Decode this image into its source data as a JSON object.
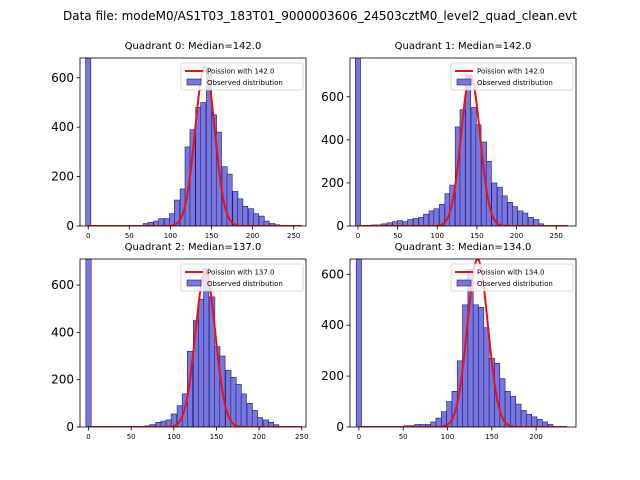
{
  "figure_title": "Data file: modeM0/AS1T03_183T01_9000003606_24503cztM0_level2_quad_clean.evt",
  "colors": {
    "hist_fill": "#7777dd",
    "hist_edge": "#1a1a80",
    "poisson_line": "#ee1111",
    "axes": "#000000"
  },
  "chart_data": [
    {
      "type": "bar",
      "title": "Quadrant 0: Median=142.0",
      "legend": [
        "Poission with 142.0",
        "Observed distribution"
      ],
      "legend_position": "top-right",
      "xlim": [
        -10,
        265
      ],
      "ylim": [
        0,
        680
      ],
      "xticks": [
        0,
        50,
        100,
        150,
        200,
        250
      ],
      "yticks": [
        0,
        200,
        400,
        600
      ],
      "bin_width": 6.4,
      "spike": {
        "x": 0,
        "value": 680
      },
      "bins": [
        [
          70,
          10
        ],
        [
          76,
          15
        ],
        [
          83,
          20
        ],
        [
          89,
          30
        ],
        [
          96,
          30
        ],
        [
          102,
          50
        ],
        [
          108,
          105
        ],
        [
          115,
          150
        ],
        [
          121,
          320
        ],
        [
          127,
          390
        ],
        [
          134,
          480
        ],
        [
          140,
          500
        ],
        [
          147,
          640
        ],
        [
          153,
          450
        ],
        [
          159,
          380
        ],
        [
          166,
          240
        ],
        [
          172,
          210
        ],
        [
          179,
          140
        ],
        [
          185,
          110
        ],
        [
          191,
          80
        ],
        [
          198,
          70
        ],
        [
          204,
          50
        ],
        [
          211,
          40
        ],
        [
          217,
          20
        ],
        [
          224,
          10
        ],
        [
          230,
          5
        ]
      ],
      "poisson_mean": 142.0,
      "poisson_peak": 645,
      "poisson_sigma": 11.9,
      "poisson_range": [
        0,
        260
      ]
    },
    {
      "type": "bar",
      "title": "Quadrant 1: Median=142.0",
      "legend": [
        "Poission with 142.0",
        "Observed distribution"
      ],
      "legend_position": "top-right",
      "xlim": [
        -10,
        275
      ],
      "ylim": [
        0,
        780
      ],
      "xticks": [
        0,
        50,
        100,
        150,
        200,
        250
      ],
      "yticks": [
        0,
        200,
        400,
        600
      ],
      "bin_width": 6.6,
      "spike": {
        "x": 0,
        "value": 780
      },
      "bins": [
        [
          20,
          5
        ],
        [
          27,
          5
        ],
        [
          33,
          10
        ],
        [
          40,
          15
        ],
        [
          47,
          20
        ],
        [
          53,
          25
        ],
        [
          60,
          20
        ],
        [
          66,
          30
        ],
        [
          73,
          35
        ],
        [
          80,
          40
        ],
        [
          86,
          55
        ],
        [
          93,
          70
        ],
        [
          99,
          80
        ],
        [
          106,
          100
        ],
        [
          113,
          150
        ],
        [
          119,
          190
        ],
        [
          126,
          460
        ],
        [
          132,
          540
        ],
        [
          139,
          700
        ],
        [
          146,
          550
        ],
        [
          152,
          470
        ],
        [
          159,
          390
        ],
        [
          165,
          300
        ],
        [
          172,
          200
        ],
        [
          179,
          180
        ],
        [
          185,
          140
        ],
        [
          192,
          110
        ],
        [
          198,
          90
        ],
        [
          205,
          70
        ],
        [
          211,
          60
        ],
        [
          218,
          40
        ],
        [
          225,
          30
        ],
        [
          231,
          10
        ]
      ],
      "poisson_mean": 142.0,
      "poisson_peak": 700,
      "poisson_sigma": 11.9,
      "poisson_range": [
        0,
        265
      ]
    },
    {
      "type": "bar",
      "title": "Quadrant 2: Median=137.0",
      "legend": [
        "Poission with 137.0",
        "Observed distribution"
      ],
      "legend_position": "top-right",
      "xlim": [
        -10,
        255
      ],
      "ylim": [
        0,
        710
      ],
      "xticks": [
        0,
        50,
        100,
        150,
        200,
        250
      ],
      "yticks": [
        0,
        200,
        400,
        600
      ],
      "bin_width": 6.3,
      "spike": {
        "x": 0,
        "value": 710
      },
      "bins": [
        [
          69,
          5
        ],
        [
          75,
          10
        ],
        [
          82,
          20
        ],
        [
          88,
          25
        ],
        [
          94,
          30
        ],
        [
          100,
          55
        ],
        [
          107,
          90
        ],
        [
          113,
          140
        ],
        [
          119,
          320
        ],
        [
          126,
          450
        ],
        [
          132,
          540
        ],
        [
          138,
          670
        ],
        [
          145,
          550
        ],
        [
          151,
          340
        ],
        [
          157,
          300
        ],
        [
          164,
          240
        ],
        [
          170,
          210
        ],
        [
          176,
          180
        ],
        [
          182,
          140
        ],
        [
          189,
          100
        ],
        [
          195,
          70
        ],
        [
          201,
          40
        ],
        [
          208,
          30
        ],
        [
          214,
          20
        ],
        [
          220,
          10
        ]
      ],
      "poisson_mean": 137.0,
      "poisson_peak": 655,
      "poisson_sigma": 11.7,
      "poisson_range": [
        0,
        250
      ]
    },
    {
      "type": "bar",
      "title": "Quadrant 3: Median=134.0",
      "legend": [
        "Poission with 134.0",
        "Observed distribution"
      ],
      "legend_position": "top-right",
      "xlim": [
        -10,
        245
      ],
      "ylim": [
        0,
        660
      ],
      "xticks": [
        0,
        50,
        100,
        150,
        200
      ],
      "yticks": [
        0,
        200,
        400,
        600
      ],
      "bin_width": 6.0,
      "spike": {
        "x": 0,
        "value": 660
      },
      "bins": [
        [
          54,
          5
        ],
        [
          60,
          5
        ],
        [
          66,
          10
        ],
        [
          72,
          10
        ],
        [
          78,
          10
        ],
        [
          84,
          20
        ],
        [
          90,
          35
        ],
        [
          96,
          60
        ],
        [
          102,
          100
        ],
        [
          108,
          140
        ],
        [
          114,
          260
        ],
        [
          120,
          480
        ],
        [
          126,
          620
        ],
        [
          132,
          480
        ],
        [
          138,
          470
        ],
        [
          144,
          390
        ],
        [
          150,
          270
        ],
        [
          156,
          250
        ],
        [
          162,
          190
        ],
        [
          168,
          140
        ],
        [
          174,
          120
        ],
        [
          180,
          90
        ],
        [
          186,
          65
        ],
        [
          192,
          50
        ],
        [
          198,
          40
        ],
        [
          204,
          30
        ],
        [
          210,
          20
        ],
        [
          216,
          10
        ]
      ],
      "poisson_mean": 134.0,
      "poisson_peak": 660,
      "poisson_sigma": 11.6,
      "poisson_range": [
        0,
        235
      ]
    }
  ]
}
